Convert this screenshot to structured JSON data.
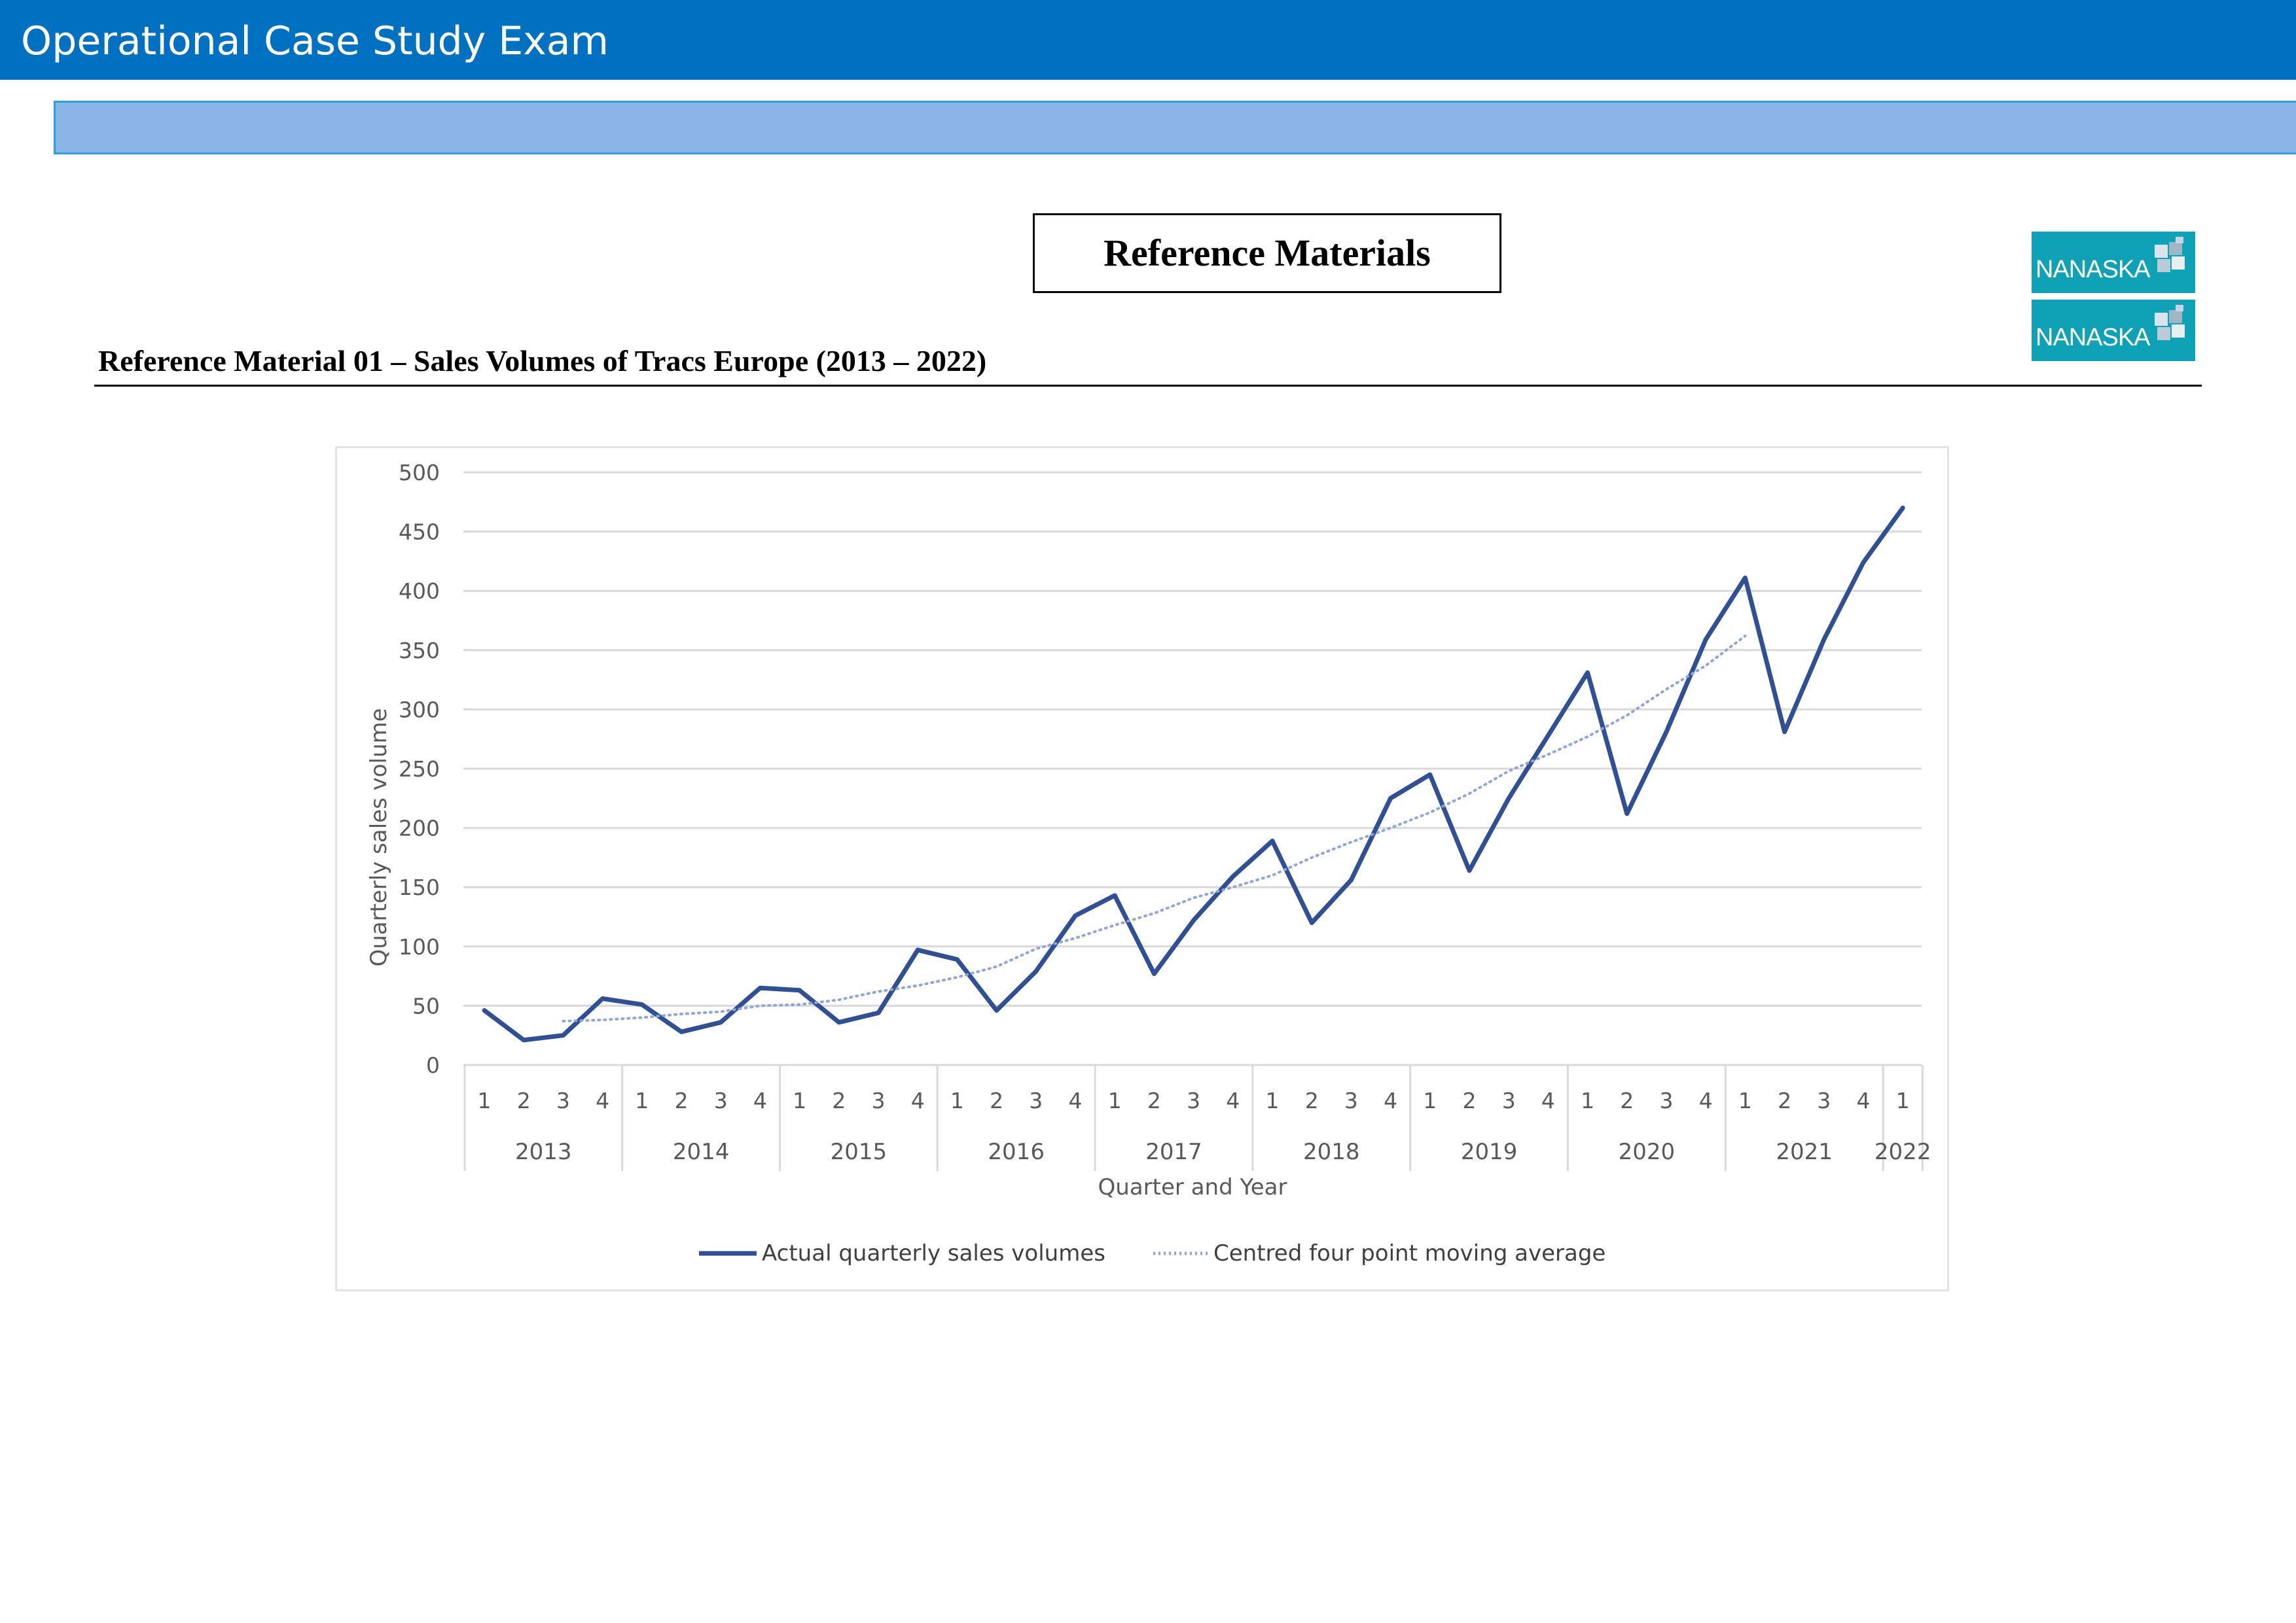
{
  "header": {
    "title": "Operational Case Study Exam"
  },
  "reference_box": {
    "label": "Reference Materials"
  },
  "logos": [
    {
      "text": "NANASKA"
    },
    {
      "text": "NANASKA"
    }
  ],
  "section": {
    "title": "Reference Material 01 – Sales Volumes of Tracs Europe (2013 – 2022)"
  },
  "colors": {
    "header_bar": "#0070c0",
    "sub_bar": "#8db4e6",
    "actual_line": "#2f4f96",
    "average_line": "#8fa4d8",
    "logo": "#0fa2b7"
  },
  "chart_data": {
    "type": "line",
    "ylabel": "Quarterly sales volume",
    "xlabel": "Quarter and Year",
    "ylim": [
      0,
      500
    ],
    "yticks": [
      0,
      50,
      100,
      150,
      200,
      250,
      300,
      350,
      400,
      450,
      500
    ],
    "grid": true,
    "legend_position": "bottom",
    "quarter_labels": [
      "1",
      "2",
      "3",
      "4",
      "1",
      "2",
      "3",
      "4",
      "1",
      "2",
      "3",
      "4",
      "1",
      "2",
      "3",
      "4",
      "1",
      "2",
      "3",
      "4",
      "1",
      "2",
      "3",
      "4",
      "1",
      "2",
      "3",
      "4",
      "1",
      "2",
      "3",
      "4",
      "1",
      "2",
      "3",
      "4",
      "1"
    ],
    "years": [
      {
        "label": "2013",
        "quarters": 4
      },
      {
        "label": "2014",
        "quarters": 4
      },
      {
        "label": "2015",
        "quarters": 4
      },
      {
        "label": "2016",
        "quarters": 4
      },
      {
        "label": "2017",
        "quarters": 4
      },
      {
        "label": "2018",
        "quarters": 4
      },
      {
        "label": "2019",
        "quarters": 4
      },
      {
        "label": "2020",
        "quarters": 4
      },
      {
        "label": "2021",
        "quarters": 4
      },
      {
        "label": "2022",
        "quarters": 1
      }
    ],
    "series": [
      {
        "name": "Actual quarterly sales volumes",
        "style": "solid",
        "values": [
          46,
          21,
          25,
          56,
          51,
          28,
          36,
          65,
          63,
          36,
          44,
          97,
          89,
          46,
          79,
          126,
          143,
          77,
          122,
          159,
          189,
          120,
          156,
          225,
          245,
          164,
          225,
          278,
          331,
          212,
          281,
          359,
          411,
          281,
          359,
          424,
          470
        ]
      },
      {
        "name": "Centred four point moving average",
        "style": "dotted",
        "values": [
          null,
          null,
          37,
          38,
          40,
          43,
          45,
          50,
          51,
          55,
          62,
          67,
          74,
          83,
          98,
          107,
          118,
          128,
          141,
          150,
          160,
          175,
          188,
          200,
          213,
          229,
          248,
          262,
          277,
          295,
          317,
          337,
          362,
          null,
          null,
          null,
          null
        ]
      }
    ]
  }
}
